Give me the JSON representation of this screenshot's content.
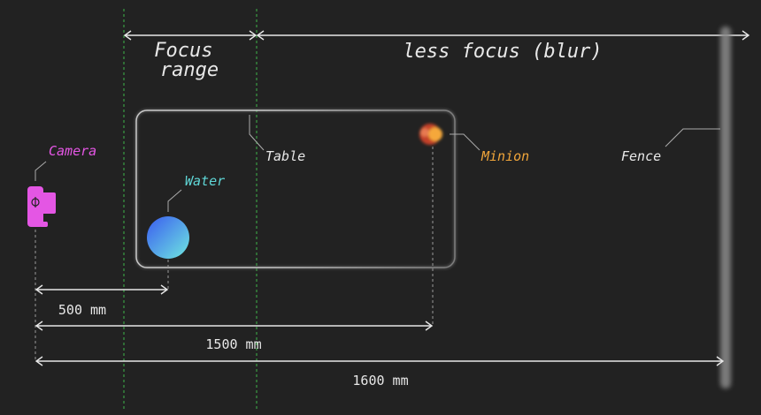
{
  "regions": {
    "focus_range": "Focus\nrange",
    "less_focus": "less focus (blur)"
  },
  "objects": {
    "camera": "Camera",
    "water": "Water",
    "table": "Table",
    "minion": "Minion",
    "fence": "Fence"
  },
  "distances": {
    "water": "500 mm",
    "minion": "1500 mm",
    "fence": "1600 mm"
  },
  "colors": {
    "background": "#222222",
    "guide": "#3fb64a",
    "camera": "#e456e4",
    "water": "#5fd6d6",
    "minion": "#f0a53a",
    "line": "#e8e8e8"
  }
}
